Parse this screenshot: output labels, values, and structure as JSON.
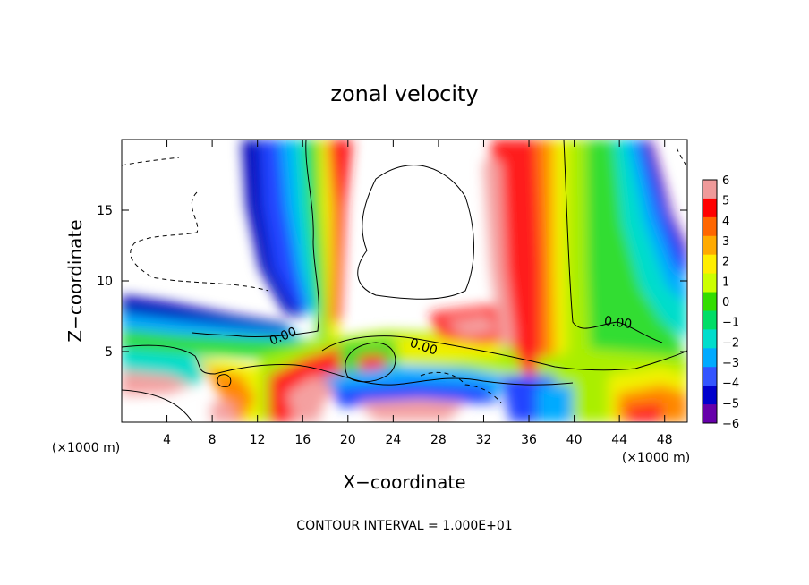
{
  "chart_data": {
    "type": "heatmap",
    "title": "zonal velocity",
    "xlabel": "X−coordinate",
    "ylabel": "Z−coordinate",
    "x_unit_left": "(×1000 m)",
    "x_unit_right": "(×1000 m)",
    "xlim": [
      0,
      50
    ],
    "ylim": [
      0,
      20
    ],
    "x_ticks": [
      4,
      8,
      12,
      16,
      20,
      24,
      28,
      32,
      36,
      40,
      44,
      48
    ],
    "y_ticks": [
      5,
      10,
      15
    ],
    "colorbar": {
      "min": -6,
      "max": 6,
      "tick_labels": [
        "6",
        "5",
        "4",
        "3",
        "2",
        "1",
        "0",
        "−1",
        "−2",
        "−3",
        "−4",
        "−5",
        "−6"
      ],
      "colors": [
        "#ef9a9a",
        "#ff0000",
        "#ff6600",
        "#ffaa00",
        "#ffee00",
        "#ccff00",
        "#33dd00",
        "#00dd66",
        "#00ddcc",
        "#00aaff",
        "#3355ff",
        "#0000cc",
        "#6600aa"
      ]
    },
    "contour_labels": [
      "0.00",
      "0.00",
      "0.00"
    ],
    "contour_interval_text": "CONTOUR INTERVAL = 1.000E+01",
    "data_notes": "Filled contours of zonal velocity; blank regions are outside the colour range. Strong positive jets near x=18 and x=36 (upper levels), strong negative bands near x=13 and x=46."
  }
}
